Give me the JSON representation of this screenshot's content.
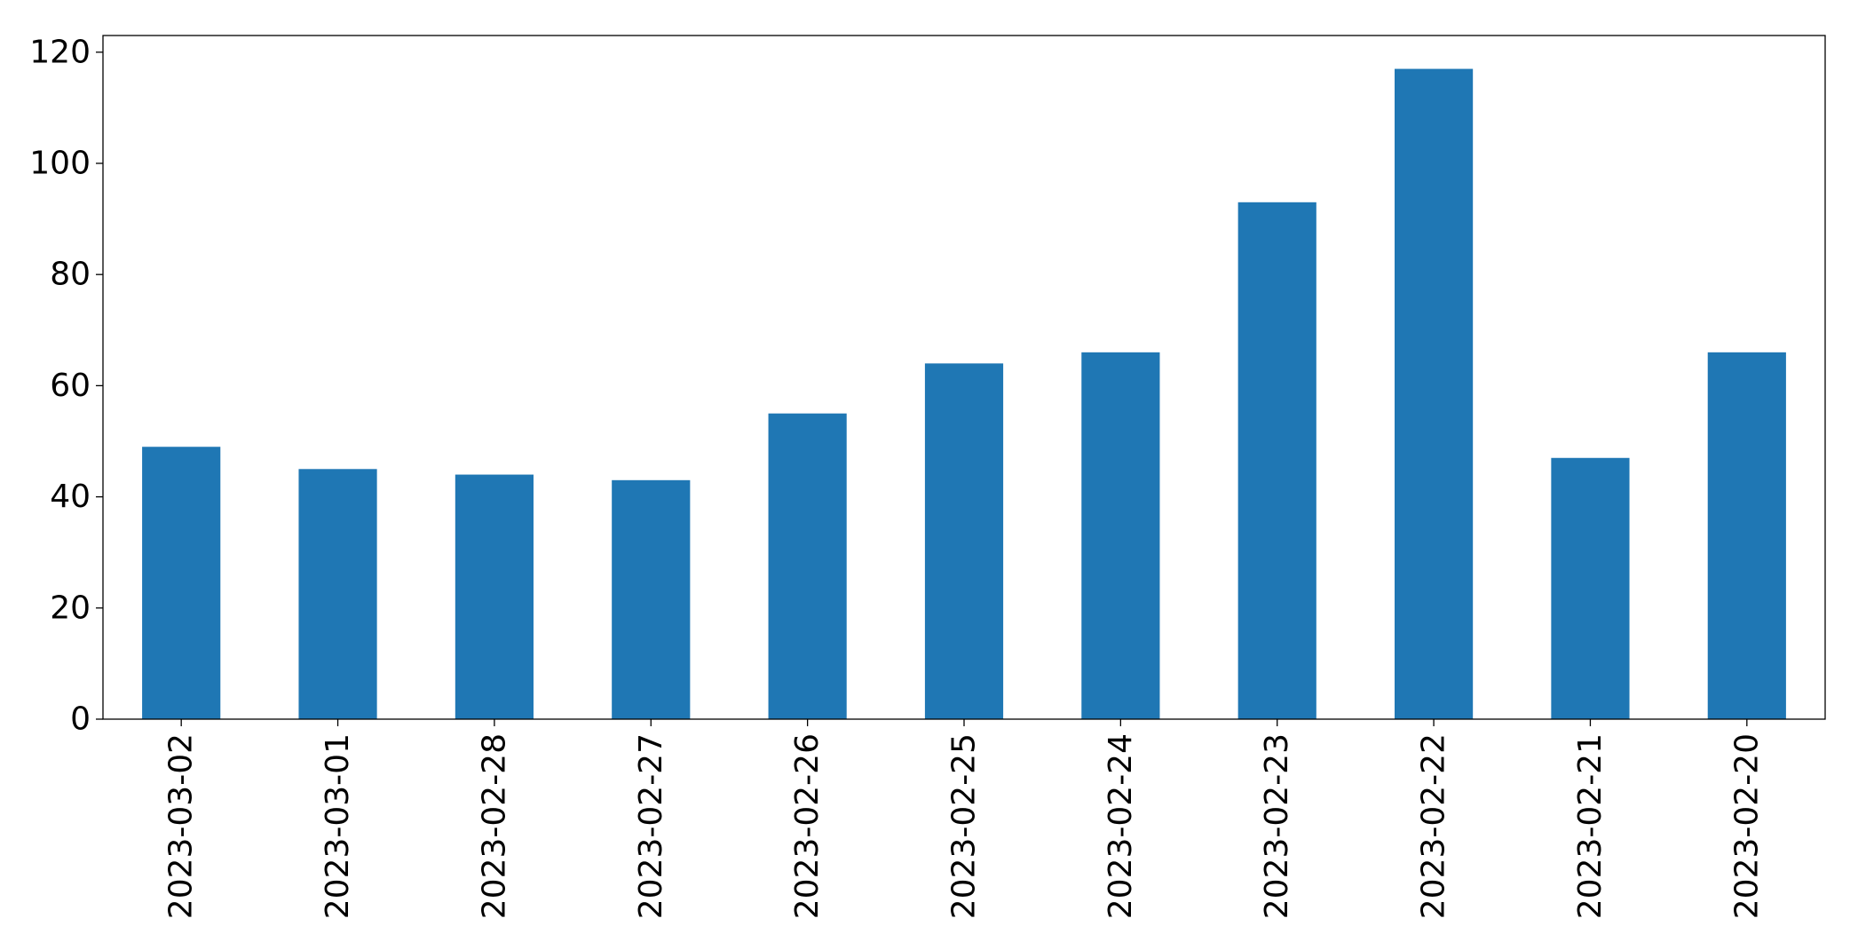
{
  "chart_data": {
    "type": "bar",
    "title": "",
    "xlabel": "",
    "ylabel": "",
    "categories": [
      "2023-03-02",
      "2023-03-01",
      "2023-02-28",
      "2023-02-27",
      "2023-02-26",
      "2023-02-25",
      "2023-02-24",
      "2023-02-23",
      "2023-02-22",
      "2023-02-21",
      "2023-02-20"
    ],
    "values": [
      49,
      45,
      44,
      43,
      55,
      64,
      66,
      93,
      117,
      47,
      66
    ],
    "ylim": [
      0,
      123
    ],
    "yticks": [
      "0",
      "20",
      "40",
      "60",
      "80",
      "100",
      "120"
    ],
    "grid": false,
    "legend": "none",
    "bar_color": "#1f77b4"
  }
}
